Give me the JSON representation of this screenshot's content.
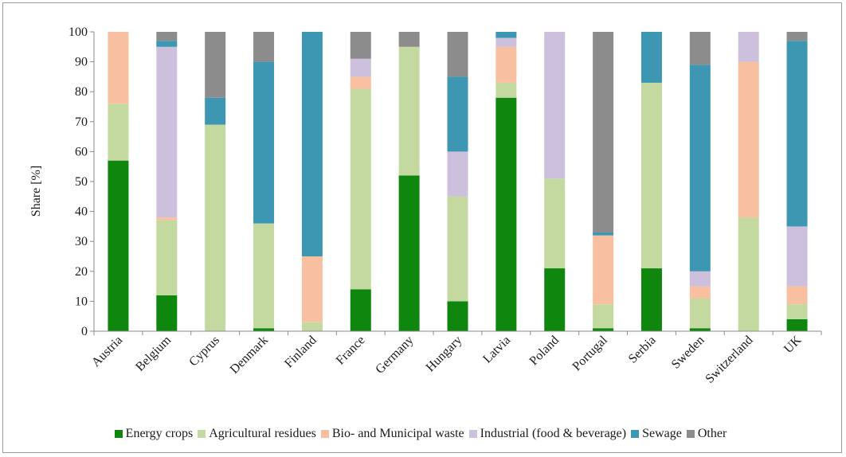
{
  "chart_data": {
    "type": "bar",
    "stacked": true,
    "title": "",
    "xlabel": "",
    "ylabel": "Share [%]",
    "ylim": [
      0,
      100
    ],
    "yticks": [
      0,
      10,
      20,
      30,
      40,
      50,
      60,
      70,
      80,
      90,
      100
    ],
    "grid": false,
    "legend_position": "bottom",
    "categories": [
      "Austria",
      "Belgium",
      "Cyprus",
      "Denmark",
      "Finland",
      "France",
      "Germany",
      "Hungary",
      "Latvia",
      "Poland",
      "Portugal",
      "Serbia",
      "Sweden",
      "Switzerland",
      "UK"
    ],
    "series": [
      {
        "name": "Energy crops",
        "color": "#0f870f",
        "values": [
          57,
          12,
          0,
          1,
          0,
          14,
          52,
          10,
          78,
          21,
          1,
          21,
          1,
          0,
          4
        ]
      },
      {
        "name": "Agricultural residues",
        "color": "#c3d9a0",
        "values": [
          19,
          25,
          69,
          35,
          3,
          67,
          43,
          35,
          5,
          30,
          8,
          62,
          10,
          38,
          5
        ]
      },
      {
        "name": "Bio- and Municipal waste",
        "color": "#f8c0a0",
        "values": [
          24,
          1,
          0,
          0,
          22,
          4,
          0,
          0,
          12,
          0,
          23,
          0,
          4,
          52,
          6
        ]
      },
      {
        "name": "Industrial (food & beverage)",
        "color": "#ccc0dc",
        "values": [
          0,
          57,
          0,
          0,
          0,
          6,
          0,
          15,
          3,
          49,
          0,
          0,
          5,
          10,
          20
        ]
      },
      {
        "name": "Sewage",
        "color": "#3d97b3",
        "values": [
          0,
          2,
          9,
          54,
          75,
          0,
          0,
          25,
          2,
          0,
          1,
          17,
          69,
          0,
          62
        ]
      },
      {
        "name": "Other",
        "color": "#8c8c8c",
        "values": [
          0,
          3,
          22,
          10,
          0,
          9,
          5,
          15,
          0,
          0,
          67,
          0,
          11,
          0,
          3
        ]
      }
    ]
  }
}
